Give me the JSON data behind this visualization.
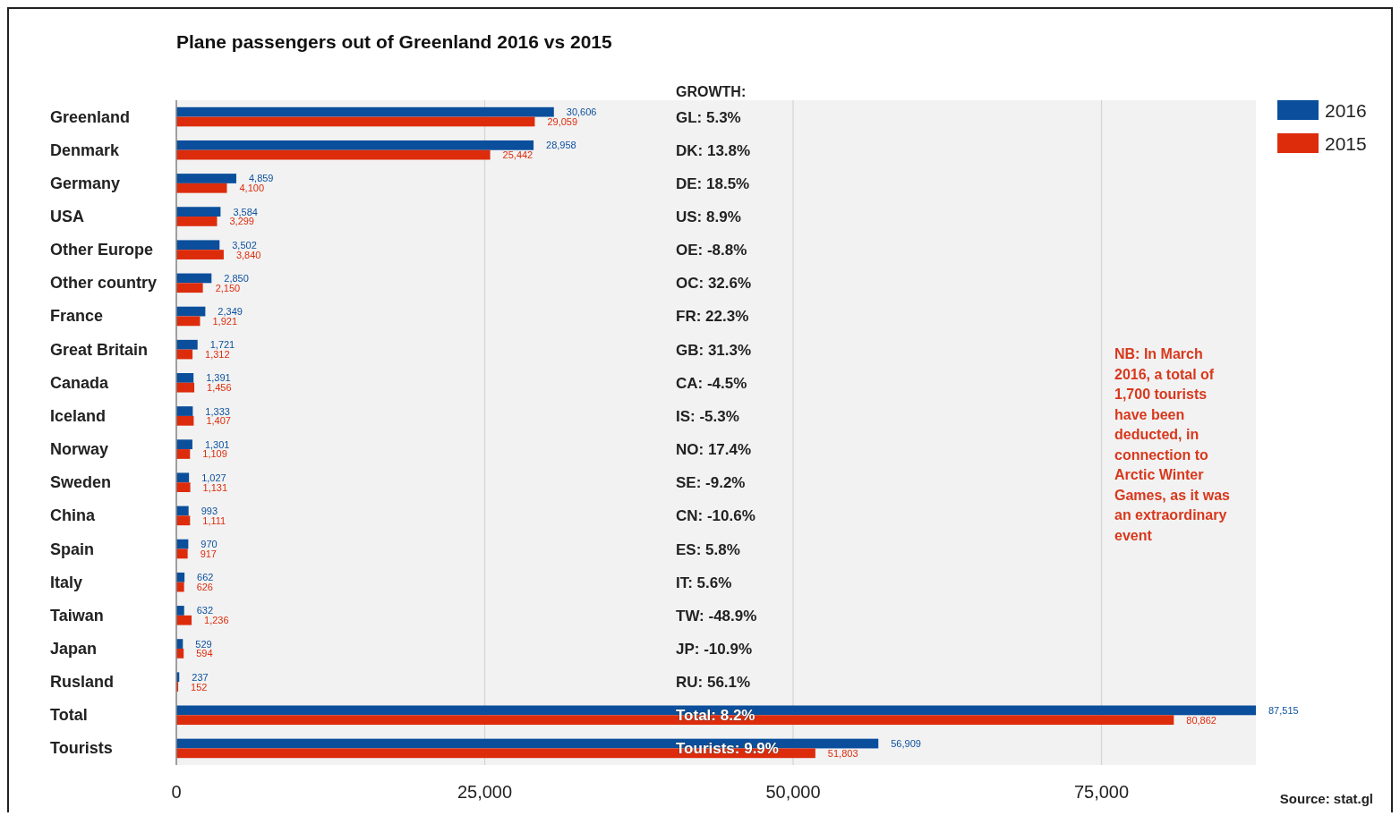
{
  "chart_data": {
    "type": "bar",
    "orientation": "horizontal",
    "title": "Plane passengers out of Greenland 2016 vs 2015",
    "categories": [
      "Greenland",
      "Denmark",
      "Germany",
      "USA",
      "Other Europe",
      "Other country",
      "France",
      "Great Britain",
      "Canada",
      "Iceland",
      "Norway",
      "Sweden",
      "China",
      "Spain",
      "Italy",
      "Taiwan",
      "Japan",
      "Rusland",
      "Total",
      "Tourists"
    ],
    "series": [
      {
        "name": "2016",
        "color": "#0b4f9c",
        "values": [
          30606,
          28958,
          4859,
          3584,
          3502,
          2850,
          2349,
          1721,
          1391,
          1333,
          1301,
          1027,
          993,
          970,
          662,
          632,
          529,
          237,
          87515,
          56909
        ],
        "value_labels": [
          "30,606",
          "28,958",
          "4,859",
          "3,584",
          "3,502",
          "2,850",
          "2,349",
          "1,721",
          "1,391",
          "1,333",
          "1,301",
          "1,027",
          "993",
          "970",
          "662",
          "632",
          "529",
          "237",
          "87,515",
          "56,909"
        ]
      },
      {
        "name": "2015",
        "color": "#dd2c0c",
        "values": [
          29059,
          25442,
          4100,
          3299,
          3840,
          2150,
          1921,
          1312,
          1456,
          1407,
          1109,
          1131,
          1111,
          917,
          626,
          1236,
          594,
          152,
          80862,
          51803
        ],
        "value_labels": [
          "29,059",
          "25,442",
          "4,100",
          "3,299",
          "3,840",
          "2,150",
          "1,921",
          "1,312",
          "1,456",
          "1,407",
          "1,109",
          "1,131",
          "1,111",
          "917",
          "626",
          "1,236",
          "594",
          "152",
          "80,862",
          "51,803"
        ]
      }
    ],
    "xlim": [
      0,
      87515
    ],
    "xticks": [
      {
        "value": 0,
        "label": "0"
      },
      {
        "value": 25000,
        "label": "25,000"
      },
      {
        "value": 50000,
        "label": "50,000"
      },
      {
        "value": 75000,
        "label": "75,000"
      }
    ],
    "grid": "x",
    "legend": "top right",
    "annotations": [
      "GROWTH:",
      "GL: 5.3%",
      "DK: 13.8%",
      "DE: 18.5%",
      "US: 8.9%",
      "OE: -8.8%",
      "OC:  32.6%",
      "FR: 22.3%",
      "GB: 31.3%",
      "CA: -4.5%",
      "IS: -5.3%",
      "NO: 17.4%",
      "SE: -9.2%",
      "CN: -10.6%",
      "ES: 5.8%",
      "IT: 5.6%",
      "TW: -48.9%",
      "JP: -10.9%",
      "RU: 56.1%",
      "Total: 8.2%",
      "Tourists: 9.9%",
      "NB: In March 2016, a total of 1,700 tourists have been deducted, in connection to Arctic Winter Games, as it was an extraordinary event",
      "Source: stat.gl"
    ]
  }
}
